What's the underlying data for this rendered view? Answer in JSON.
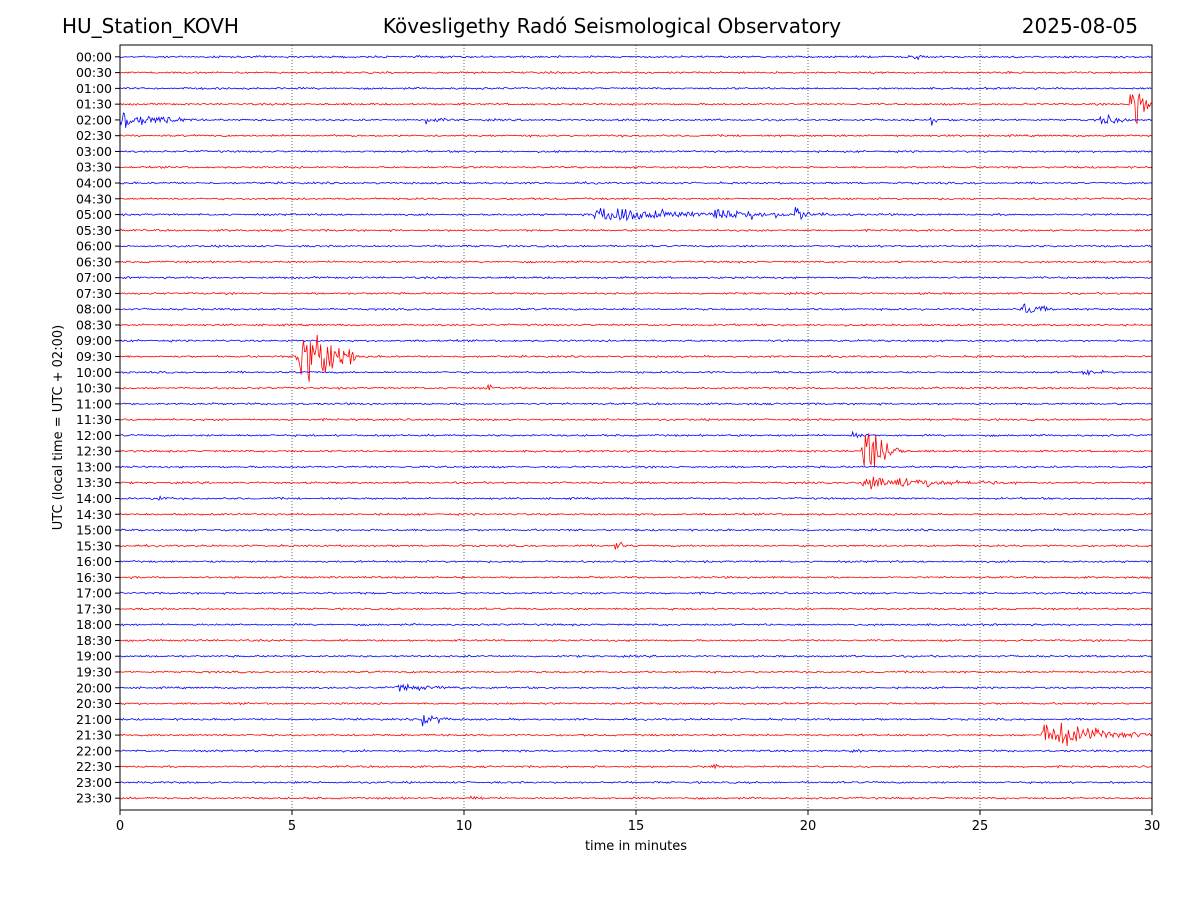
{
  "header": {
    "station": "HU_Station_KOVH",
    "title": "Kövesligethy Radó Seismological Observatory",
    "date": "2025-08-05"
  },
  "chart_data": {
    "type": "line",
    "subtype": "helicorder",
    "xlabel": "time in minutes",
    "ylabel": "UTC (local time = UTC + 02:00)",
    "xlim": [
      0,
      30
    ],
    "xticks": [
      0,
      5,
      10,
      15,
      20,
      25,
      30
    ],
    "vertical_grid": true,
    "trace_colors": [
      "#0000ff",
      "#ff0000"
    ],
    "rows": [
      "00:00",
      "00:30",
      "01:00",
      "01:30",
      "02:00",
      "02:30",
      "03:00",
      "03:30",
      "04:00",
      "04:30",
      "05:00",
      "05:30",
      "06:00",
      "06:30",
      "07:00",
      "07:30",
      "08:00",
      "08:30",
      "09:00",
      "09:30",
      "10:00",
      "10:30",
      "11:00",
      "11:30",
      "12:00",
      "12:30",
      "13:00",
      "13:30",
      "14:00",
      "14:30",
      "15:00",
      "15:30",
      "16:00",
      "16:30",
      "17:00",
      "17:30",
      "18:00",
      "18:30",
      "19:00",
      "19:30",
      "20:00",
      "20:30",
      "21:00",
      "21:30",
      "22:00",
      "22:30",
      "23:00",
      "23:30"
    ],
    "events": [
      {
        "row": "00:00",
        "start_min": 22.9,
        "duration_min": 1.0,
        "amplitude": 0.25
      },
      {
        "row": "01:30",
        "start_min": 29.4,
        "duration_min": 0.6,
        "amplitude": 3.0
      },
      {
        "row": "02:00",
        "start_min": 0.0,
        "duration_min": 2.5,
        "amplitude": 0.6
      },
      {
        "row": "02:00",
        "start_min": 8.9,
        "duration_min": 0.8,
        "amplitude": 0.4
      },
      {
        "row": "02:00",
        "start_min": 23.6,
        "duration_min": 0.3,
        "amplitude": 0.4
      },
      {
        "row": "02:00",
        "start_min": 28.5,
        "duration_min": 1.0,
        "amplitude": 0.5
      },
      {
        "row": "05:00",
        "start_min": 13.8,
        "duration_min": 3.5,
        "amplitude": 0.9
      },
      {
        "row": "05:00",
        "start_min": 17.3,
        "duration_min": 4.0,
        "amplitude": 0.45
      },
      {
        "row": "05:00",
        "start_min": 19.6,
        "duration_min": 0.6,
        "amplitude": 0.8
      },
      {
        "row": "08:00",
        "start_min": 26.2,
        "duration_min": 1.2,
        "amplitude": 0.5
      },
      {
        "row": "09:30",
        "start_min": 5.15,
        "duration_min": 1.8,
        "amplitude": 3.0
      },
      {
        "row": "10:00",
        "start_min": 28.0,
        "duration_min": 0.8,
        "amplitude": 0.3
      },
      {
        "row": "10:30",
        "start_min": 10.7,
        "duration_min": 0.3,
        "amplitude": 0.4
      },
      {
        "row": "12:00",
        "start_min": 21.3,
        "duration_min": 0.7,
        "amplitude": 0.3
      },
      {
        "row": "12:30",
        "start_min": 21.6,
        "duration_min": 1.2,
        "amplitude": 2.0
      },
      {
        "row": "13:30",
        "start_min": 21.6,
        "duration_min": 4.5,
        "amplitude": 0.6
      },
      {
        "row": "14:00",
        "start_min": 1.0,
        "duration_min": 0.5,
        "amplitude": 0.3
      },
      {
        "row": "15:30",
        "start_min": 14.4,
        "duration_min": 0.3,
        "amplitude": 1.0
      },
      {
        "row": "20:00",
        "start_min": 8.0,
        "duration_min": 3.0,
        "amplitude": 0.25
      },
      {
        "row": "21:00",
        "start_min": 8.8,
        "duration_min": 0.8,
        "amplitude": 0.8
      },
      {
        "row": "21:30",
        "start_min": 26.8,
        "duration_min": 3.2,
        "amplitude": 1.1
      },
      {
        "row": "22:00",
        "start_min": 21.3,
        "duration_min": 0.5,
        "amplitude": 0.35
      },
      {
        "row": "22:30",
        "start_min": 17.2,
        "duration_min": 0.3,
        "amplitude": 0.6
      },
      {
        "row": "23:30",
        "start_min": 10.2,
        "duration_min": 0.5,
        "amplitude": 0.3
      }
    ]
  }
}
